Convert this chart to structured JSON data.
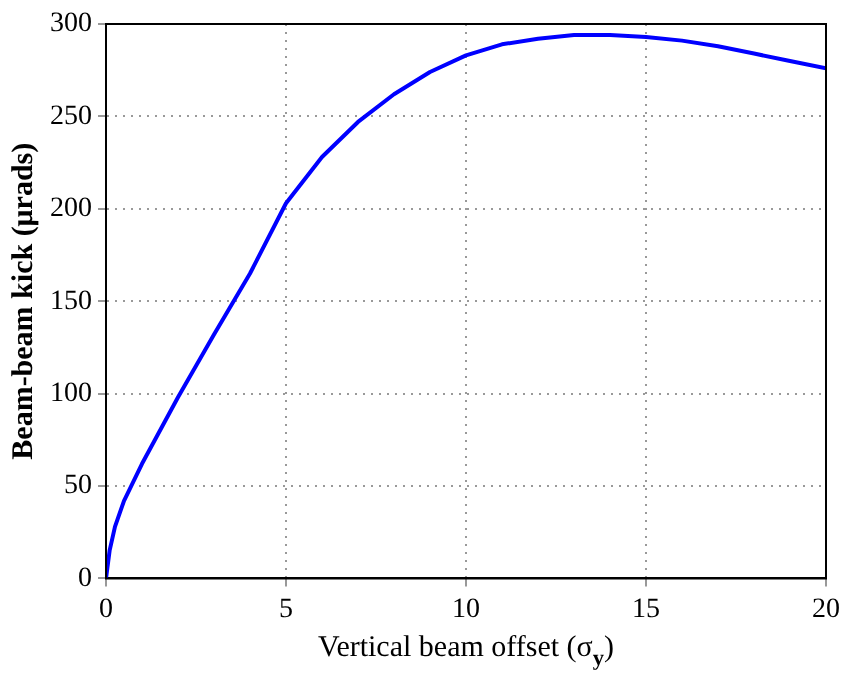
{
  "chart_data": {
    "type": "line",
    "xlabel": "Vertical beam offset (σ$_{y}$)",
    "ylabel": "Beam-beam kick (μrads)",
    "x": [
      0,
      0.1,
      0.25,
      0.5,
      1,
      1.5,
      2,
      3,
      4,
      5,
      6,
      7,
      8,
      9,
      10,
      11,
      12,
      13,
      14,
      15,
      16,
      17,
      18,
      19,
      20
    ],
    "series": [
      {
        "color": "#0000ff",
        "values": [
          0,
          15,
          28,
          42,
          62,
          80,
          98,
          132,
          165,
          203,
          228,
          247,
          262,
          274,
          283,
          289,
          292,
          294,
          294,
          293,
          291,
          288,
          284,
          280,
          276
        ]
      }
    ],
    "xlim": [
      0,
      20
    ],
    "xticks": [
      0,
      5,
      10,
      15,
      20
    ],
    "ylim": [
      0,
      300
    ],
    "yticks": [
      0,
      50,
      100,
      150,
      200,
      250,
      300
    ],
    "grid": true,
    "legend": false,
    "marker": "none",
    "line_style": "solid"
  }
}
